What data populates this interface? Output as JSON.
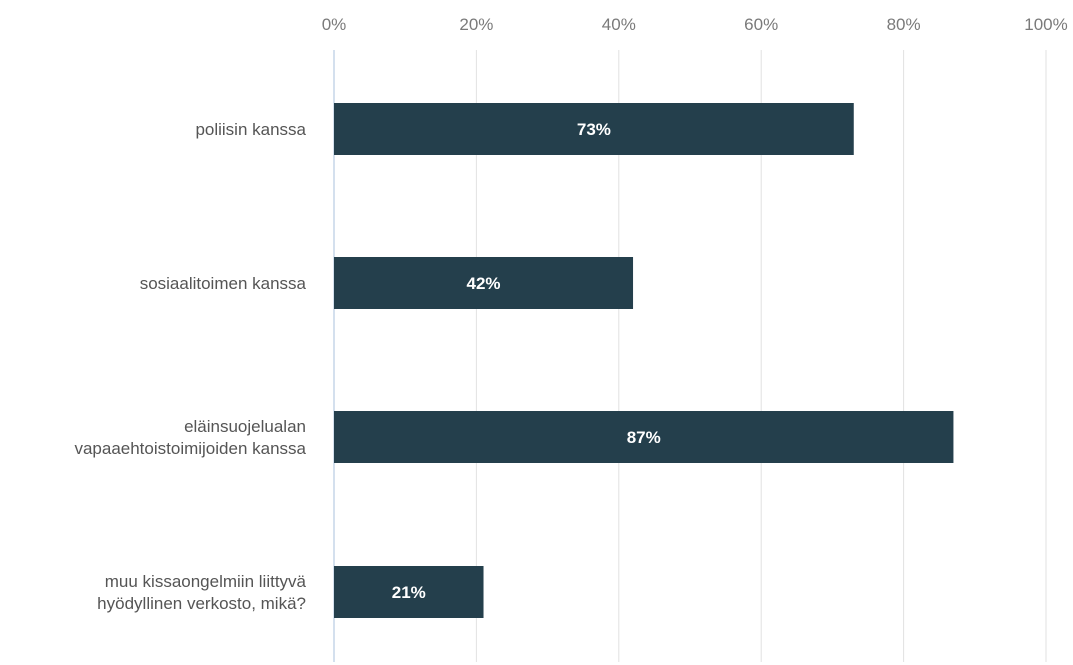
{
  "chart_data": {
    "type": "bar",
    "orientation": "horizontal",
    "title": "",
    "xlabel": "",
    "ylabel": "",
    "categories": [
      [
        "poliisin kanssa"
      ],
      [
        "sosiaalitoimen kanssa"
      ],
      [
        "eläinsuojelualan",
        "vapaaehtoistoimijoiden kanssa"
      ],
      [
        "muu kissaongelmiin liittyvä",
        "hyödyllinen verkosto, mikä?"
      ]
    ],
    "values": [
      73,
      42,
      87,
      21
    ],
    "data_labels": [
      "73%",
      "42%",
      "87%",
      "21%"
    ],
    "xlim": [
      0,
      100
    ],
    "ticks": [
      0,
      20,
      40,
      60,
      80,
      100
    ],
    "tick_labels": [
      "0%",
      "20%",
      "40%",
      "60%",
      "80%",
      "100%"
    ],
    "axis_position": "top",
    "grid": true,
    "bar_color": "#243f4c",
    "grid_color": "#e2e2e2",
    "axis_color": "#c6d6e8"
  }
}
